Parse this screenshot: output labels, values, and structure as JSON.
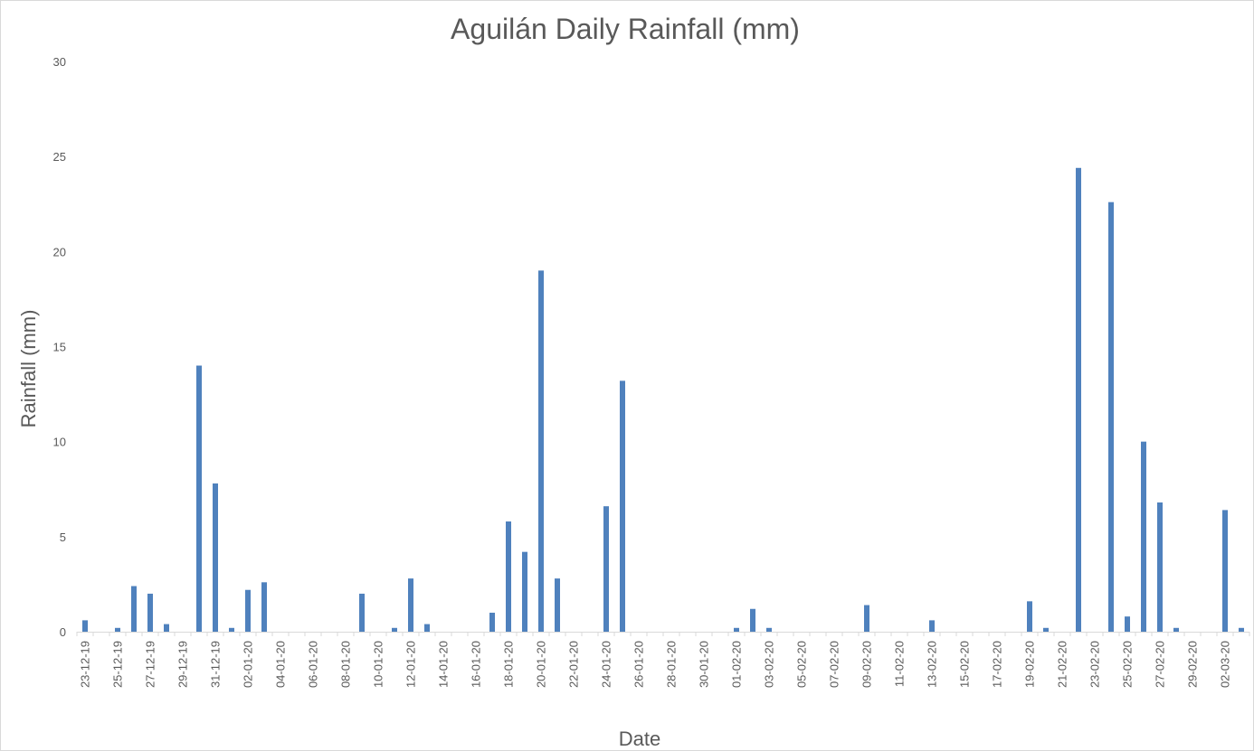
{
  "chart_data": {
    "type": "bar",
    "title": "Aguilán Daily Rainfall (mm)",
    "xlabel": "Date",
    "ylabel": "Rainfall (mm)",
    "ylim": [
      0,
      30
    ],
    "yticks": [
      0,
      5,
      10,
      15,
      20,
      25,
      30
    ],
    "grid": false,
    "legend": "none",
    "bar_color": "#4f81bd",
    "categories": [
      "23-12-19",
      "24-12-19",
      "25-12-19",
      "26-12-19",
      "27-12-19",
      "28-12-19",
      "29-12-19",
      "30-12-19",
      "31-12-19",
      "01-01-20",
      "02-01-20",
      "03-01-20",
      "04-01-20",
      "05-01-20",
      "06-01-20",
      "07-01-20",
      "08-01-20",
      "09-01-20",
      "10-01-20",
      "11-01-20",
      "12-01-20",
      "13-01-20",
      "14-01-20",
      "15-01-20",
      "16-01-20",
      "17-01-20",
      "18-01-20",
      "19-01-20",
      "20-01-20",
      "21-01-20",
      "22-01-20",
      "23-01-20",
      "24-01-20",
      "25-01-20",
      "26-01-20",
      "27-01-20",
      "28-01-20",
      "29-01-20",
      "30-01-20",
      "31-01-20",
      "01-02-20",
      "02-02-20",
      "03-02-20",
      "04-02-20",
      "05-02-20",
      "06-02-20",
      "07-02-20",
      "08-02-20",
      "09-02-20",
      "10-02-20",
      "11-02-20",
      "12-02-20",
      "13-02-20",
      "14-02-20",
      "15-02-20",
      "16-02-20",
      "17-02-20",
      "18-02-20",
      "19-02-20",
      "20-02-20",
      "21-02-20",
      "22-02-20",
      "23-02-20",
      "24-02-20",
      "25-02-20",
      "26-02-20",
      "27-02-20",
      "28-02-20",
      "29-02-20",
      "01-03-20",
      "02-03-20",
      "03-03-20"
    ],
    "tick_labels": [
      "23-12-19",
      "25-12-19",
      "27-12-19",
      "29-12-19",
      "31-12-19",
      "02-01-20",
      "04-01-20",
      "06-01-20",
      "08-01-20",
      "10-01-20",
      "12-01-20",
      "14-01-20",
      "16-01-20",
      "18-01-20",
      "20-01-20",
      "22-01-20",
      "24-01-20",
      "26-01-20",
      "28-01-20",
      "30-01-20",
      "01-02-20",
      "03-02-20",
      "05-02-20",
      "07-02-20",
      "09-02-20",
      "11-02-20",
      "13-02-20",
      "15-02-20",
      "17-02-20",
      "19-02-20",
      "21-02-20",
      "23-02-20",
      "25-02-20",
      "27-02-20",
      "29-02-20",
      "02-03-20"
    ],
    "values": [
      0.6,
      0,
      0.2,
      2.4,
      2.0,
      0.4,
      0,
      14.0,
      7.8,
      0.2,
      2.2,
      2.6,
      0,
      0,
      0,
      0,
      0,
      2.0,
      0,
      0.2,
      2.8,
      0.4,
      0,
      0,
      0,
      1.0,
      5.8,
      4.2,
      19.0,
      2.8,
      0,
      0,
      6.6,
      13.2,
      0,
      0,
      0,
      0,
      0,
      0,
      0.2,
      1.2,
      0.2,
      0,
      0,
      0,
      0,
      0,
      1.4,
      0,
      0,
      0,
      0.6,
      0,
      0,
      0,
      0,
      0,
      1.6,
      0.2,
      0,
      24.4,
      0,
      22.6,
      0.8,
      10.0,
      6.8,
      0.2,
      0,
      0,
      6.4,
      0.2
    ]
  }
}
